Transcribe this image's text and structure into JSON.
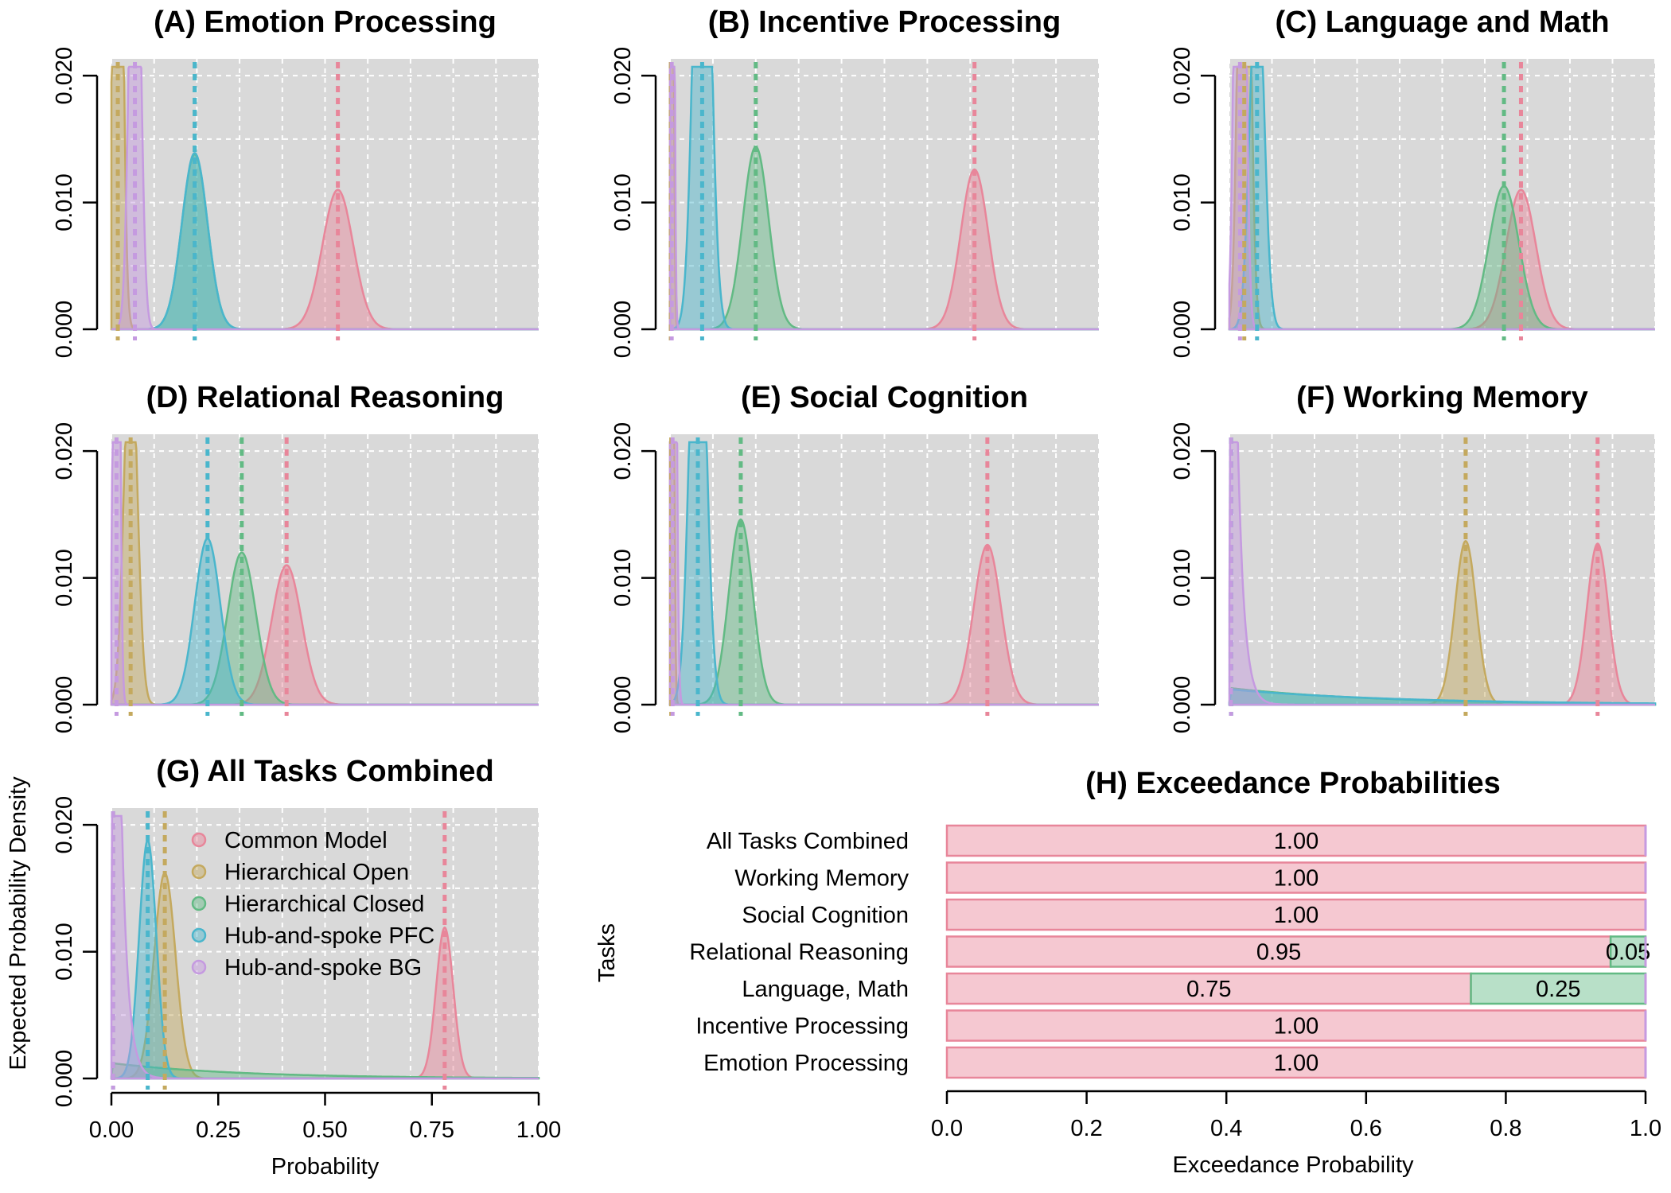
{
  "series_colors": {
    "Common Model": "#e8869a",
    "Hierarchical Open": "#c4a95e",
    "Hierarchical Closed": "#62ba84",
    "Hub-and-spoke PFC": "#4ab6cc",
    "Hub-and-spoke BG": "#c59ae0"
  },
  "panel_background": "#d9d9d9",
  "chart_data": [
    {
      "type": "area",
      "title": "(A) Emotion Processing",
      "xlabel": "",
      "ylabel": "",
      "xlim": [
        0,
        1
      ],
      "ylim": [
        0,
        0.02
      ],
      "yticks": [
        "0.000",
        "0.010",
        "0.020"
      ],
      "grid": true,
      "series": [
        {
          "name": "Common Model",
          "mean": 0.53,
          "peak": 0.011,
          "sd": 0.036
        },
        {
          "name": "Hierarchical Open",
          "mean": 0.015,
          "peak": 0.06,
          "sd": 0.01
        },
        {
          "name": "Hierarchical Closed",
          "mean": 0.195,
          "peak": 0.0138,
          "sd": 0.03
        },
        {
          "name": "Hub-and-spoke PFC",
          "mean": 0.195,
          "peak": 0.0139,
          "sd": 0.03
        },
        {
          "name": "Hub-and-spoke BG",
          "mean": 0.055,
          "peak": 0.045,
          "sd": 0.012
        }
      ]
    },
    {
      "type": "area",
      "title": "(B) Incentive Processing",
      "xlabel": "",
      "ylabel": "",
      "xlim": [
        0,
        1
      ],
      "ylim": [
        0,
        0.02
      ],
      "yticks": [
        "0.000",
        "0.010",
        "0.020"
      ],
      "grid": true,
      "series": [
        {
          "name": "Common Model",
          "mean": 0.71,
          "peak": 0.0126,
          "sd": 0.032
        },
        {
          "name": "Hierarchical Open",
          "mean": 0.002,
          "peak": 0.12,
          "sd": 0.004
        },
        {
          "name": "Hierarchical Closed",
          "mean": 0.2,
          "peak": 0.0144,
          "sd": 0.03
        },
        {
          "name": "Hub-and-spoke PFC",
          "mean": 0.075,
          "peak": 0.05,
          "sd": 0.018
        },
        {
          "name": "Hub-and-spoke BG",
          "mean": 0.004,
          "peak": 0.12,
          "sd": 0.004
        }
      ]
    },
    {
      "type": "area",
      "title": "(C) Language and Math",
      "xlabel": "",
      "ylabel": "",
      "xlim": [
        0,
        1
      ],
      "ylim": [
        0,
        0.02
      ],
      "yticks": [
        "0.000",
        "0.010",
        "0.020"
      ],
      "grid": true,
      "series": [
        {
          "name": "Common Model",
          "mean": 0.685,
          "peak": 0.011,
          "sd": 0.035
        },
        {
          "name": "Hierarchical Open",
          "mean": 0.035,
          "peak": 0.06,
          "sd": 0.012
        },
        {
          "name": "Hierarchical Closed",
          "mean": 0.645,
          "peak": 0.0113,
          "sd": 0.035
        },
        {
          "name": "Hub-and-spoke PFC",
          "mean": 0.065,
          "peak": 0.03,
          "sd": 0.016
        },
        {
          "name": "Hub-and-spoke BG",
          "mean": 0.025,
          "peak": 0.08,
          "sd": 0.01
        }
      ]
    },
    {
      "type": "area",
      "title": "(D) Relational Reasoning",
      "xlabel": "",
      "ylabel": "",
      "xlim": [
        0,
        1
      ],
      "ylim": [
        0,
        0.02
      ],
      "yticks": [
        "0.000",
        "0.010",
        "0.020"
      ],
      "grid": true,
      "series": [
        {
          "name": "Common Model",
          "mean": 0.41,
          "peak": 0.011,
          "sd": 0.035
        },
        {
          "name": "Hierarchical Open",
          "mean": 0.045,
          "peak": 0.03,
          "sd": 0.015
        },
        {
          "name": "Hierarchical Closed",
          "mean": 0.305,
          "peak": 0.012,
          "sd": 0.033
        },
        {
          "name": "Hub-and-spoke PFC",
          "mean": 0.225,
          "peak": 0.0131,
          "sd": 0.03
        },
        {
          "name": "Hub-and-spoke BG",
          "mean": 0.012,
          "peak": 0.08,
          "sd": 0.006
        }
      ]
    },
    {
      "type": "area",
      "title": "(E) Social Cognition",
      "xlabel": "",
      "ylabel": "",
      "xlim": [
        0,
        1
      ],
      "ylim": [
        0,
        0.02
      ],
      "yticks": [
        "0.000",
        "0.010",
        "0.020"
      ],
      "grid": true,
      "series": [
        {
          "name": "Common Model",
          "mean": 0.74,
          "peak": 0.0126,
          "sd": 0.032
        },
        {
          "name": "Hierarchical Open",
          "mean": 0.003,
          "peak": 0.12,
          "sd": 0.004
        },
        {
          "name": "Hierarchical Closed",
          "mean": 0.165,
          "peak": 0.0146,
          "sd": 0.028
        },
        {
          "name": "Hub-and-spoke PFC",
          "mean": 0.065,
          "peak": 0.04,
          "sd": 0.018
        },
        {
          "name": "Hub-and-spoke BG",
          "mean": 0.006,
          "peak": 0.1,
          "sd": 0.006
        }
      ]
    },
    {
      "type": "area",
      "title": "(F) Working Memory",
      "xlabel": "",
      "ylabel": "",
      "xlim": [
        0,
        1
      ],
      "ylim": [
        0,
        0.02
      ],
      "yticks": [
        "0.000",
        "0.010",
        "0.020"
      ],
      "grid": true,
      "series": [
        {
          "name": "Common Model",
          "mean": 0.865,
          "peak": 0.0127,
          "sd": 0.025
        },
        {
          "name": "Hierarchical Open",
          "mean": 0.555,
          "peak": 0.0129,
          "sd": 0.025
        },
        {
          "name": "Hierarchical Closed",
          "mean": 0.004,
          "peak": 0.0013,
          "decay": 0.35
        },
        {
          "name": "Hub-and-spoke PFC",
          "mean": 0.004,
          "peak": 0.0012,
          "decay": 0.4
        },
        {
          "name": "Hub-and-spoke BG",
          "mean": 0.004,
          "peak": 0.06,
          "decay": 0.015
        }
      ]
    },
    {
      "type": "area",
      "title": "(G) All Tasks Combined",
      "xlabel": "Probability",
      "ylabel": "Expected Probability Density",
      "xlim": [
        0,
        1
      ],
      "ylim": [
        0,
        0.02
      ],
      "xticks": [
        "0.00",
        "0.25",
        "0.50",
        "0.75",
        "1.00"
      ],
      "yticks": [
        "0.000",
        "0.010",
        "0.020"
      ],
      "grid": true,
      "legend": "top-left",
      "series": [
        {
          "name": "Common Model",
          "mean": 0.78,
          "peak": 0.0119,
          "sd": 0.02
        },
        {
          "name": "Hierarchical Open",
          "mean": 0.125,
          "peak": 0.0162,
          "sd": 0.025
        },
        {
          "name": "Hierarchical Closed",
          "mean": 0.004,
          "peak": 0.0012,
          "decay": 0.3
        },
        {
          "name": "Hub-and-spoke PFC",
          "mean": 0.085,
          "peak": 0.0188,
          "sd": 0.02
        },
        {
          "name": "Hub-and-spoke BG",
          "mean": 0.004,
          "peak": 0.08,
          "decay": 0.015
        }
      ]
    },
    {
      "type": "bar",
      "orientation": "horizontal",
      "stacked": true,
      "title": "(H) Exceedance Probabilities",
      "xlabel": "Exceedance Probability",
      "ylabel": "Tasks",
      "xlim": [
        0,
        1
      ],
      "xticks": [
        "0.0",
        "0.2",
        "0.4",
        "0.6",
        "0.8",
        "1.0"
      ],
      "categories": [
        "All Tasks Combined",
        "Working Memory",
        "Social Cognition",
        "Relational Reasoning",
        "Language, Math",
        "Incentive Processing",
        "Emotion Processing"
      ],
      "series": [
        {
          "name": "Common Model",
          "values": [
            1.0,
            1.0,
            1.0,
            0.95,
            0.75,
            1.0,
            1.0
          ],
          "labels": [
            "1.00",
            "1.00",
            "1.00",
            "0.95",
            "0.75",
            "1.00",
            "1.00"
          ]
        },
        {
          "name": "Hierarchical Closed",
          "values": [
            0,
            0,
            0,
            0.05,
            0.25,
            0,
            0
          ],
          "labels": [
            "",
            "",
            "",
            "0.05",
            "0.25",
            "",
            ""
          ]
        }
      ]
    }
  ]
}
